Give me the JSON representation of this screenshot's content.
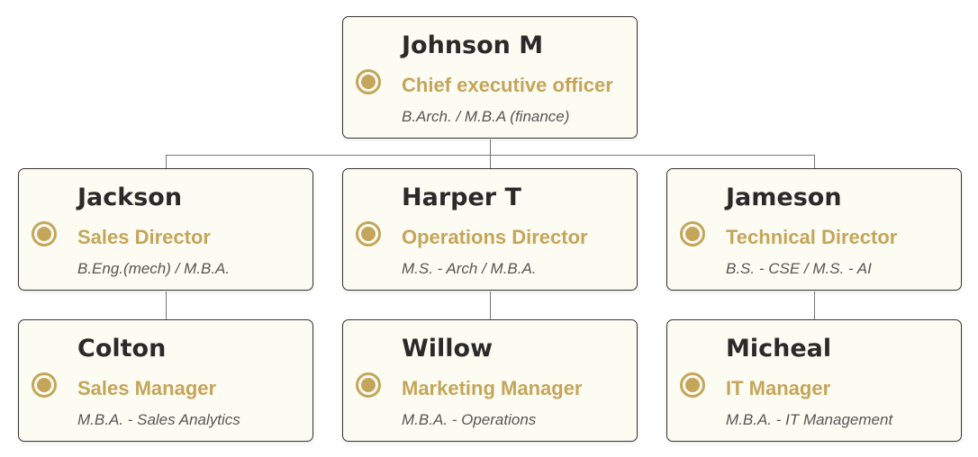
{
  "accent_color": "#c4a55a",
  "nodes": [
    {
      "name": "Johnson M",
      "title": "Chief executive officer",
      "degree": "B.Arch. / M.B.A (finance)"
    },
    {
      "name": "Jackson",
      "title": "Sales Director",
      "degree": "B.Eng.(mech) / M.B.A."
    },
    {
      "name": "Harper T",
      "title": "Operations Director",
      "degree": "M.S. - Arch / M.B.A."
    },
    {
      "name": "Jameson",
      "title": "Technical Director",
      "degree": "B.S. - CSE / M.S. - AI"
    },
    {
      "name": "Colton",
      "title": "Sales Manager",
      "degree": "M.B.A. - Sales Analytics"
    },
    {
      "name": "Willow",
      "title": "Marketing Manager",
      "degree": "M.B.A. - Operations"
    },
    {
      "name": "Micheal",
      "title": "IT Manager",
      "degree": "M.B.A. - IT Management"
    }
  ]
}
